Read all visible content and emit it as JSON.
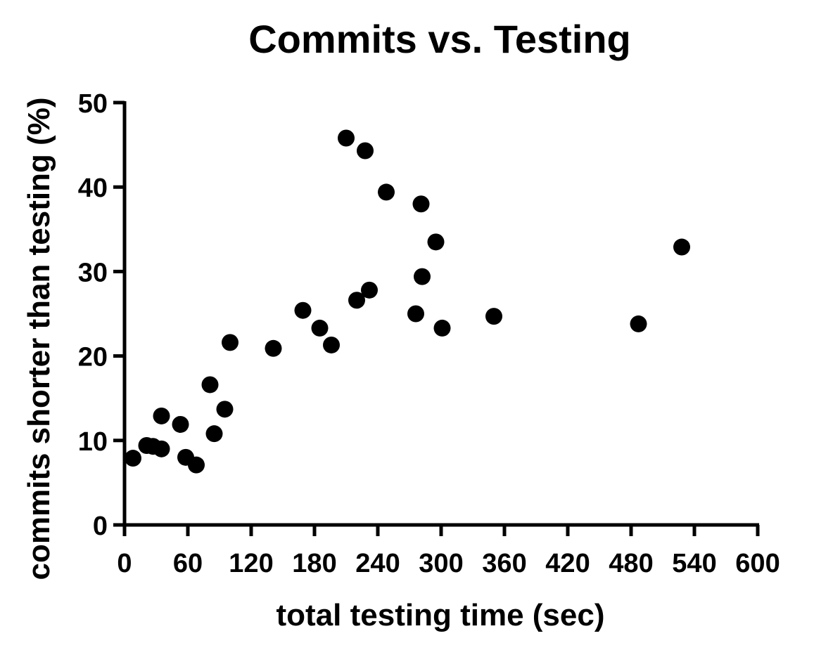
{
  "chart_data": {
    "type": "scatter",
    "title": "Commits vs. Testing",
    "xlabel": "total testing time (sec)",
    "ylabel": "commits shorter than testing (%)",
    "xlim": [
      0,
      600
    ],
    "ylim": [
      0,
      50
    ],
    "xticks": [
      "0",
      "60",
      "120",
      "180",
      "240",
      "300",
      "360",
      "420",
      "480",
      "540",
      "600"
    ],
    "yticks": [
      "0",
      "10",
      "20",
      "30",
      "40",
      "50"
    ],
    "grid": false,
    "legend": "none",
    "marker_color": "#000000",
    "points": [
      {
        "x": 8,
        "y": 7.9
      },
      {
        "x": 21,
        "y": 9.4
      },
      {
        "x": 27,
        "y": 9.3
      },
      {
        "x": 35,
        "y": 9.0
      },
      {
        "x": 35,
        "y": 12.9
      },
      {
        "x": 53,
        "y": 11.9
      },
      {
        "x": 58,
        "y": 8.0
      },
      {
        "x": 68,
        "y": 7.1
      },
      {
        "x": 81,
        "y": 16.6
      },
      {
        "x": 85,
        "y": 10.8
      },
      {
        "x": 95,
        "y": 13.7
      },
      {
        "x": 100,
        "y": 21.6
      },
      {
        "x": 141,
        "y": 20.9
      },
      {
        "x": 169,
        "y": 25.4
      },
      {
        "x": 185,
        "y": 23.3
      },
      {
        "x": 196,
        "y": 21.3
      },
      {
        "x": 210,
        "y": 45.8
      },
      {
        "x": 220,
        "y": 26.6
      },
      {
        "x": 228,
        "y": 44.3
      },
      {
        "x": 232,
        "y": 27.8
      },
      {
        "x": 248,
        "y": 39.4
      },
      {
        "x": 276,
        "y": 25.0
      },
      {
        "x": 281,
        "y": 38.0
      },
      {
        "x": 282,
        "y": 29.4
      },
      {
        "x": 295,
        "y": 33.5
      },
      {
        "x": 301,
        "y": 23.3
      },
      {
        "x": 350,
        "y": 24.7
      },
      {
        "x": 487,
        "y": 23.8
      },
      {
        "x": 528,
        "y": 32.9
      }
    ]
  }
}
